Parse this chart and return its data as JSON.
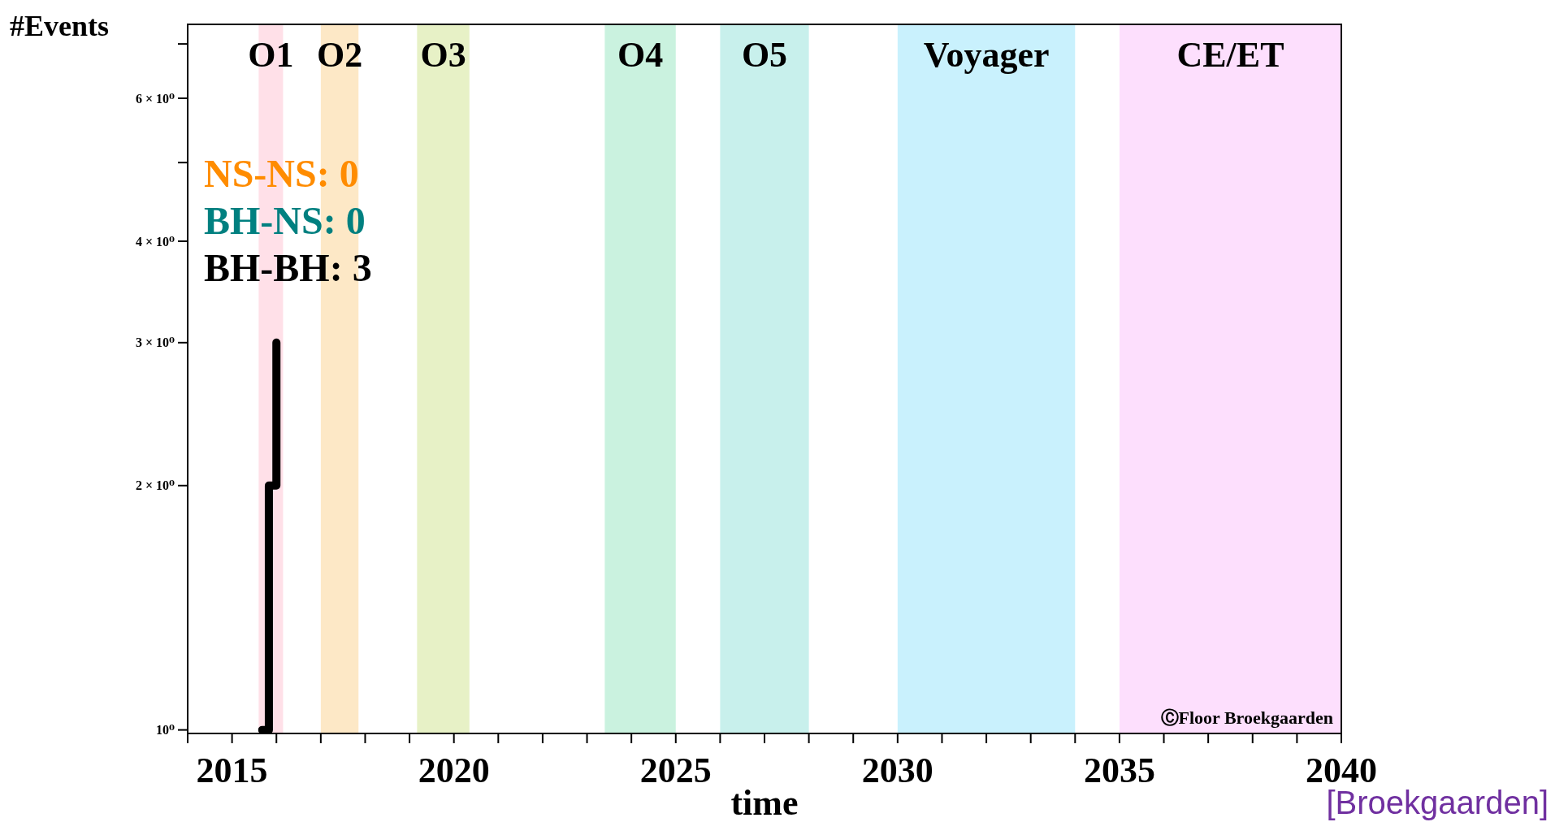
{
  "chart_data": {
    "type": "step",
    "xlabel": "time",
    "ylabel": "#Events",
    "x": [
      2015.68,
      2015.83,
      2016.0
    ],
    "series": [
      {
        "color": "#000000",
        "values": [
          1,
          2,
          3
        ]
      }
    ],
    "xlim": [
      2014,
      2040
    ],
    "xticks": [
      {
        "value": 2014,
        "label": null
      },
      2015,
      {
        "value": 2016,
        "label": null
      },
      {
        "value": 2017,
        "label": null
      },
      {
        "value": 2018,
        "label": null
      },
      {
        "value": 2019,
        "label": null
      },
      2020,
      {
        "value": 2021,
        "label": null
      },
      {
        "value": 2022,
        "label": null
      },
      {
        "value": 2023,
        "label": null
      },
      {
        "value": 2024,
        "label": null
      },
      2025,
      {
        "value": 2026,
        "label": null
      },
      {
        "value": 2027,
        "label": null
      },
      {
        "value": 2028,
        "label": null
      },
      {
        "value": 2029,
        "label": null
      },
      2030,
      {
        "value": 2031,
        "label": null
      },
      {
        "value": 2032,
        "label": null
      },
      {
        "value": 2033,
        "label": null
      },
      {
        "value": 2034,
        "label": null
      },
      2035,
      {
        "value": 2036,
        "label": null
      },
      {
        "value": 2037,
        "label": null
      },
      {
        "value": 2038,
        "label": null
      },
      {
        "value": 2039,
        "label": null
      },
      2040
    ],
    "ylim": [
      0.99,
      7.4
    ],
    "log": "y",
    "yticks": [
      {
        "value": 1,
        "label": "10⁰"
      },
      {
        "value": 2,
        "label": "2 × 10⁰"
      },
      {
        "value": 3,
        "label": "3 × 10⁰"
      },
      {
        "value": 4,
        "label": "4 × 10⁰"
      },
      {
        "value": 5,
        "label": null
      },
      {
        "value": 6,
        "label": "6 × 10⁰"
      },
      {
        "value": 7,
        "label": null
      }
    ],
    "bands": [
      {
        "axis": "x",
        "from": 2015.6,
        "to": 2016.15,
        "label": "O1",
        "color": "#ffdde6"
      },
      {
        "axis": "x",
        "from": 2017.0,
        "to": 2017.85,
        "label": "O2",
        "color": "#fde6c0"
      },
      {
        "axis": "x",
        "from": 2019.17,
        "to": 2020.35,
        "label": "O3",
        "color": "#e4f0c0"
      },
      {
        "axis": "x",
        "from": 2023.4,
        "to": 2025.0,
        "label": "O4",
        "color": "#c4f1dc"
      },
      {
        "axis": "x",
        "from": 2026.0,
        "to": 2028.0,
        "label": "O5",
        "color": "#c2eeea"
      },
      {
        "axis": "x",
        "from": 2030.0,
        "to": 2034.0,
        "label": "Voyager",
        "color": "#c3effd"
      },
      {
        "axis": "x",
        "from": 2035.0,
        "to": 2040.0,
        "label": "CE/ET",
        "color": "#fddcfd"
      }
    ],
    "annotations": [
      "NS-NS: 0",
      "BH-NS: 0",
      "BH-BH: 3",
      "ⒸFloor Broekgaarden",
      "[Broekgaarden]"
    ],
    "grid": false,
    "marker": "none",
    "line_style": "solid"
  }
}
